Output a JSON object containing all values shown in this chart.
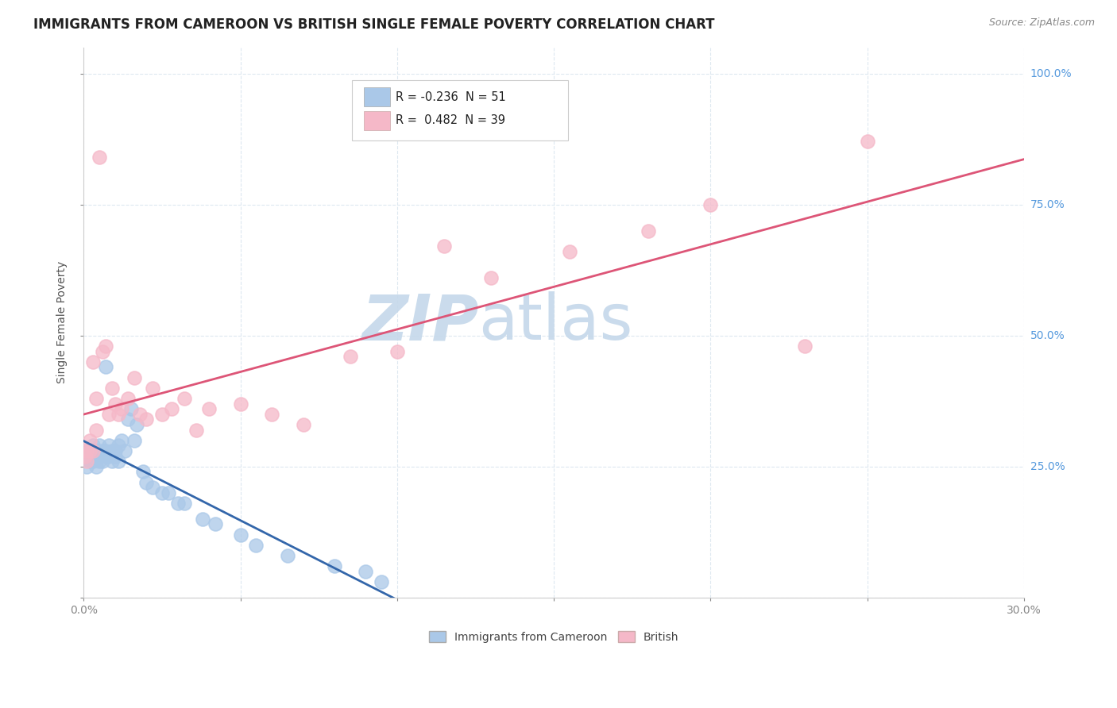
{
  "title": "IMMIGRANTS FROM CAMEROON VS BRITISH SINGLE FEMALE POVERTY CORRELATION CHART",
  "source": "Source: ZipAtlas.com",
  "ylabel": "Single Female Poverty",
  "xmin": 0.0,
  "xmax": 0.3,
  "ymin": 0.0,
  "ymax": 1.05,
  "legend_r1": "-0.236",
  "legend_n1": "51",
  "legend_r2": "0.482",
  "legend_n2": "39",
  "watermark_zip": "ZIP",
  "watermark_atlas": "atlas",
  "blue_scatter_x": [
    0.0005,
    0.001,
    0.001,
    0.0015,
    0.002,
    0.002,
    0.002,
    0.003,
    0.003,
    0.003,
    0.003,
    0.004,
    0.004,
    0.004,
    0.005,
    0.005,
    0.005,
    0.006,
    0.006,
    0.007,
    0.007,
    0.007,
    0.008,
    0.008,
    0.009,
    0.009,
    0.01,
    0.01,
    0.011,
    0.011,
    0.012,
    0.013,
    0.014,
    0.015,
    0.016,
    0.017,
    0.019,
    0.02,
    0.022,
    0.025,
    0.027,
    0.03,
    0.032,
    0.038,
    0.042,
    0.05,
    0.055,
    0.065,
    0.08,
    0.09,
    0.095
  ],
  "blue_scatter_y": [
    0.27,
    0.28,
    0.25,
    0.27,
    0.26,
    0.28,
    0.27,
    0.26,
    0.28,
    0.27,
    0.29,
    0.25,
    0.27,
    0.28,
    0.26,
    0.27,
    0.29,
    0.28,
    0.26,
    0.27,
    0.28,
    0.44,
    0.27,
    0.29,
    0.26,
    0.28,
    0.28,
    0.27,
    0.26,
    0.29,
    0.3,
    0.28,
    0.34,
    0.36,
    0.3,
    0.33,
    0.24,
    0.22,
    0.21,
    0.2,
    0.2,
    0.18,
    0.18,
    0.15,
    0.14,
    0.12,
    0.1,
    0.08,
    0.06,
    0.05,
    0.03
  ],
  "pink_scatter_x": [
    0.0005,
    0.001,
    0.001,
    0.002,
    0.002,
    0.003,
    0.003,
    0.004,
    0.004,
    0.005,
    0.006,
    0.007,
    0.008,
    0.009,
    0.01,
    0.011,
    0.012,
    0.014,
    0.016,
    0.018,
    0.02,
    0.022,
    0.025,
    0.028,
    0.032,
    0.036,
    0.04,
    0.05,
    0.06,
    0.07,
    0.085,
    0.1,
    0.115,
    0.13,
    0.155,
    0.18,
    0.2,
    0.23,
    0.25
  ],
  "pink_scatter_y": [
    0.27,
    0.26,
    0.28,
    0.28,
    0.3,
    0.45,
    0.28,
    0.38,
    0.32,
    0.84,
    0.47,
    0.48,
    0.35,
    0.4,
    0.37,
    0.35,
    0.36,
    0.38,
    0.42,
    0.35,
    0.34,
    0.4,
    0.35,
    0.36,
    0.38,
    0.32,
    0.36,
    0.37,
    0.35,
    0.33,
    0.46,
    0.47,
    0.67,
    0.61,
    0.66,
    0.7,
    0.75,
    0.48,
    0.87
  ],
  "blue_color": "#aac8e8",
  "pink_color": "#f5b8c8",
  "blue_line_color": "#3366aa",
  "pink_line_color": "#dd5577",
  "background_color": "#ffffff",
  "grid_color": "#dde8f0",
  "title_color": "#222222",
  "title_fontsize": 12,
  "axis_label_fontsize": 10,
  "tick_fontsize": 10,
  "yaxis_tick_color": "#5599dd",
  "watermark_color_zip": "#c5d8ea",
  "watermark_color_atlas": "#c5d8ea",
  "watermark_fontsize": 58
}
